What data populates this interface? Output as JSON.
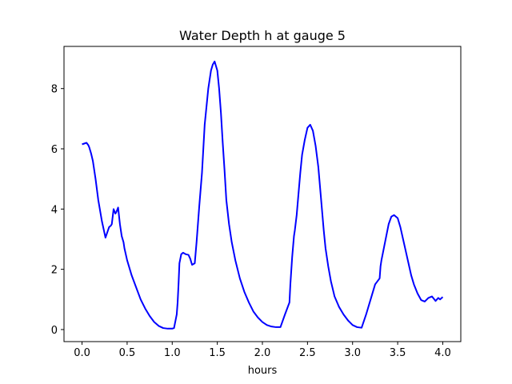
{
  "chart_data": {
    "type": "line",
    "title": "Water Depth h at gauge 5",
    "xlabel": "hours",
    "ylabel": "",
    "xlim": [
      -0.2,
      4.2
    ],
    "ylim": [
      -0.4,
      9.4
    ],
    "xticks": [
      0.0,
      0.5,
      1.0,
      1.5,
      2.0,
      2.5,
      3.0,
      3.5,
      4.0
    ],
    "xtick_labels": [
      "0.0",
      "0.5",
      "1.0",
      "1.5",
      "2.0",
      "2.5",
      "3.0",
      "3.5",
      "4.0"
    ],
    "yticks": [
      0,
      2,
      4,
      6,
      8
    ],
    "ytick_labels": [
      "0",
      "2",
      "4",
      "6",
      "8"
    ],
    "grid": false,
    "series": [
      {
        "color": "#0000ff",
        "x": [
          0.0,
          0.03,
          0.05,
          0.07,
          0.08,
          0.1,
          0.12,
          0.15,
          0.18,
          0.22,
          0.26,
          0.3,
          0.32,
          0.33,
          0.35,
          0.37,
          0.38,
          0.4,
          0.42,
          0.44,
          0.46,
          0.47,
          0.5,
          0.55,
          0.6,
          0.65,
          0.7,
          0.75,
          0.8,
          0.85,
          0.9,
          0.95,
          1.0,
          1.02,
          1.05,
          1.06,
          1.07,
          1.08,
          1.1,
          1.12,
          1.15,
          1.18,
          1.2,
          1.22,
          1.25,
          1.27,
          1.3,
          1.33,
          1.36,
          1.4,
          1.43,
          1.45,
          1.47,
          1.5,
          1.52,
          1.54,
          1.56,
          1.58,
          1.6,
          1.63,
          1.66,
          1.7,
          1.75,
          1.8,
          1.85,
          1.9,
          1.95,
          2.0,
          2.05,
          2.1,
          2.15,
          2.2,
          2.25,
          2.3,
          2.31,
          2.33,
          2.35,
          2.36,
          2.38,
          2.4,
          2.42,
          2.44,
          2.47,
          2.5,
          2.53,
          2.56,
          2.59,
          2.62,
          2.64,
          2.66,
          2.68,
          2.7,
          2.73,
          2.76,
          2.8,
          2.85,
          2.9,
          2.95,
          3.0,
          3.05,
          3.1,
          3.15,
          3.2,
          3.25,
          3.3,
          3.31,
          3.32,
          3.34,
          3.36,
          3.38,
          3.4,
          3.43,
          3.46,
          3.5,
          3.53,
          3.56,
          3.59,
          3.62,
          3.65,
          3.68,
          3.72,
          3.76,
          3.8,
          3.84,
          3.88,
          3.92,
          3.95,
          3.97,
          4.0
        ],
        "y": [
          6.15,
          6.18,
          6.2,
          6.12,
          6.05,
          5.85,
          5.6,
          5.0,
          4.3,
          3.6,
          3.05,
          3.4,
          3.45,
          3.5,
          4.0,
          3.85,
          3.9,
          4.05,
          3.5,
          3.1,
          2.9,
          2.7,
          2.3,
          1.8,
          1.4,
          1.0,
          0.7,
          0.45,
          0.25,
          0.12,
          0.05,
          0.03,
          0.03,
          0.05,
          0.5,
          0.9,
          1.5,
          2.2,
          2.5,
          2.55,
          2.5,
          2.48,
          2.35,
          2.15,
          2.2,
          2.9,
          4.1,
          5.2,
          6.8,
          8.0,
          8.6,
          8.8,
          8.9,
          8.6,
          8.0,
          7.2,
          6.2,
          5.3,
          4.3,
          3.5,
          2.9,
          2.3,
          1.7,
          1.25,
          0.9,
          0.6,
          0.4,
          0.25,
          0.15,
          0.1,
          0.08,
          0.08,
          0.5,
          0.9,
          1.5,
          2.4,
          3.1,
          3.3,
          3.8,
          4.5,
          5.2,
          5.8,
          6.3,
          6.7,
          6.8,
          6.6,
          6.1,
          5.4,
          4.7,
          4.0,
          3.3,
          2.7,
          2.1,
          1.6,
          1.1,
          0.75,
          0.5,
          0.3,
          0.15,
          0.08,
          0.06,
          0.5,
          1.0,
          1.5,
          1.7,
          2.1,
          2.3,
          2.6,
          2.9,
          3.2,
          3.5,
          3.75,
          3.8,
          3.7,
          3.4,
          3.0,
          2.6,
          2.2,
          1.8,
          1.5,
          1.2,
          0.98,
          0.93,
          1.05,
          1.1,
          0.95,
          1.05,
          1.0,
          1.08
        ]
      }
    ]
  }
}
